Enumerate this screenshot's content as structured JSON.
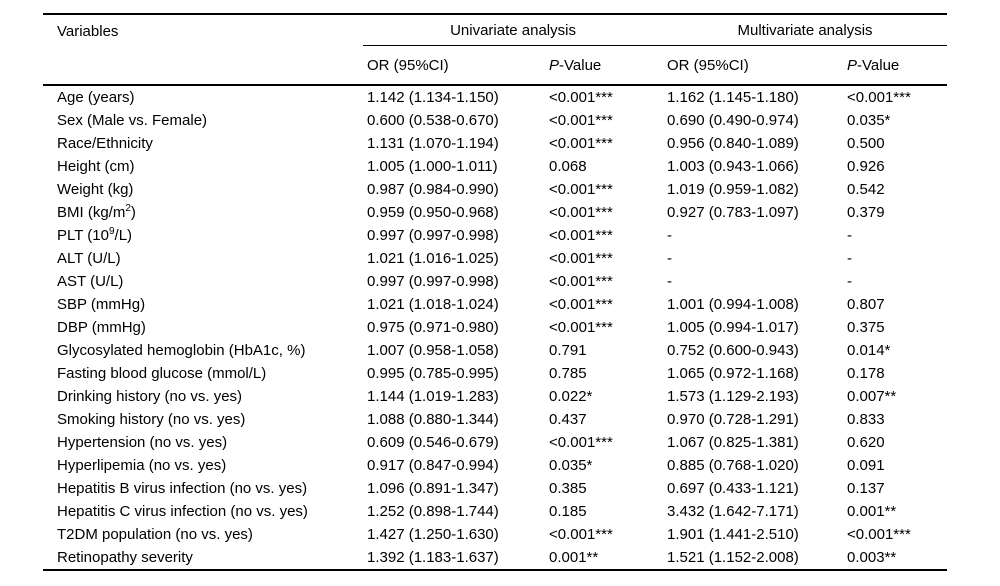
{
  "table": {
    "header": {
      "variables_label": "Variables",
      "univariate_label": "Univariate analysis",
      "multivariate_label": "Multivariate analysis",
      "or_label": "OR (95%CI)",
      "p_italic": "P",
      "p_rest": "-Value"
    },
    "rows": [
      {
        "variable": {
          "text": "Age (years)"
        },
        "uni_or": "1.142 (1.134-1.150)",
        "uni_p": "<0.001***",
        "multi_or": "1.162 (1.145-1.180)",
        "multi_p": "<0.001***"
      },
      {
        "variable": {
          "text": "Sex (Male vs. Female)"
        },
        "uni_or": "0.600 (0.538-0.670)",
        "uni_p": "<0.001***",
        "multi_or": "0.690 (0.490-0.974)",
        "multi_p": "0.035*"
      },
      {
        "variable": {
          "text": "Race/Ethnicity"
        },
        "uni_or": "1.131 (1.070-1.194)",
        "uni_p": "<0.001***",
        "multi_or": "0.956 (0.840-1.089)",
        "multi_p": "0.500"
      },
      {
        "variable": {
          "text": "Height (cm)"
        },
        "uni_or": "1.005 (1.000-1.011)",
        "uni_p": "0.068",
        "multi_or": "1.003 (0.943-1.066)",
        "multi_p": "0.926"
      },
      {
        "variable": {
          "text": "Weight (kg)"
        },
        "uni_or": "0.987 (0.984-0.990)",
        "uni_p": "<0.001***",
        "multi_or": "1.019 (0.959-1.082)",
        "multi_p": "0.542"
      },
      {
        "variable": {
          "text": "BMI (kg/m",
          "sup": "2",
          "after": ")"
        },
        "uni_or": "0.959 (0.950-0.968)",
        "uni_p": "<0.001***",
        "multi_or": "0.927 (0.783-1.097)",
        "multi_p": "0.379"
      },
      {
        "variable": {
          "text": "PLT (10",
          "sup": "9",
          "after": "/L)"
        },
        "uni_or": "0.997 (0.997-0.998)",
        "uni_p": "<0.001***",
        "multi_or": "-",
        "multi_p": "-"
      },
      {
        "variable": {
          "text": "ALT (U/L)"
        },
        "uni_or": "1.021 (1.016-1.025)",
        "uni_p": "<0.001***",
        "multi_or": "-",
        "multi_p": "-"
      },
      {
        "variable": {
          "text": "AST (U/L)"
        },
        "uni_or": "0.997 (0.997-0.998)",
        "uni_p": "<0.001***",
        "multi_or": "-",
        "multi_p": "-"
      },
      {
        "variable": {
          "text": "SBP (mmHg)"
        },
        "uni_or": "1.021 (1.018-1.024)",
        "uni_p": "<0.001***",
        "multi_or": "1.001 (0.994-1.008)",
        "multi_p": "0.807"
      },
      {
        "variable": {
          "text": "DBP (mmHg)"
        },
        "uni_or": "0.975 (0.971-0.980)",
        "uni_p": "<0.001***",
        "multi_or": "1.005 (0.994-1.017)",
        "multi_p": "0.375"
      },
      {
        "variable": {
          "text": "Glycosylated hemoglobin (HbA1c, %)"
        },
        "uni_or": "1.007 (0.958-1.058)",
        "uni_p": "0.791",
        "multi_or": "0.752 (0.600-0.943)",
        "multi_p": "0.014*"
      },
      {
        "variable": {
          "text": "Fasting blood glucose (mmol/L)"
        },
        "uni_or": "0.995 (0.785-0.995)",
        "uni_p": "0.785",
        "multi_or": "1.065 (0.972-1.168)",
        "multi_p": "0.178"
      },
      {
        "variable": {
          "text": "Drinking history (no vs. yes)"
        },
        "uni_or": "1.144 (1.019-1.283)",
        "uni_p": "0.022*",
        "multi_or": "1.573 (1.129-2.193)",
        "multi_p": "0.007**"
      },
      {
        "variable": {
          "text": "Smoking history (no vs. yes)"
        },
        "uni_or": "1.088 (0.880-1.344)",
        "uni_p": "0.437",
        "multi_or": "0.970 (0.728-1.291)",
        "multi_p": "0.833"
      },
      {
        "variable": {
          "text": "Hypertension (no vs. yes)"
        },
        "uni_or": "0.609 (0.546-0.679)",
        "uni_p": "<0.001***",
        "multi_or": "1.067 (0.825-1.381)",
        "multi_p": "0.620"
      },
      {
        "variable": {
          "text": "Hyperlipemia (no vs. yes)"
        },
        "uni_or": "0.917 (0.847-0.994)",
        "uni_p": "0.035*",
        "multi_or": "0.885 (0.768-1.020)",
        "multi_p": "0.091"
      },
      {
        "variable": {
          "text": "Hepatitis B virus infection (no vs. yes)"
        },
        "uni_or": "1.096 (0.891-1.347)",
        "uni_p": "0.385",
        "multi_or": "0.697 (0.433-1.121)",
        "multi_p": "0.137"
      },
      {
        "variable": {
          "text": "Hepatitis C virus infection (no vs. yes)"
        },
        "uni_or": "1.252 (0.898-1.744)",
        "uni_p": "0.185",
        "multi_or": "3.432 (1.642-7.171)",
        "multi_p": "0.001**"
      },
      {
        "variable": {
          "text": "T2DM population (no vs. yes)"
        },
        "uni_or": "1.427 (1.250-1.630)",
        "uni_p": "<0.001***",
        "multi_or": "1.901 (1.441-2.510)",
        "multi_p": "<0.001***"
      },
      {
        "variable": {
          "text": "Retinopathy severity"
        },
        "uni_or": "1.392 (1.183-1.637)",
        "uni_p": "0.001**",
        "multi_or": "1.521 (1.152-2.008)",
        "multi_p": "0.003**"
      }
    ]
  }
}
